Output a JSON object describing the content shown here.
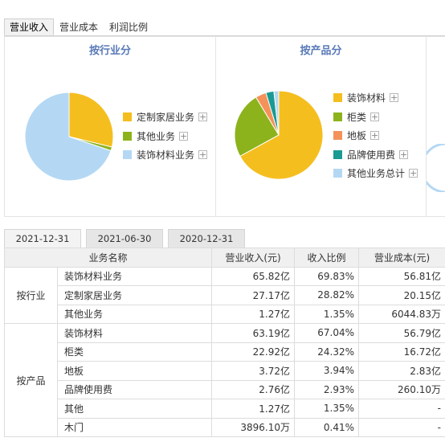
{
  "tabs": [
    "营业收入",
    "营业成本",
    "利润比例"
  ],
  "panels": [
    {
      "title": "按行业分",
      "legend": [
        {
          "label": "定制家居业务",
          "color": "#f5be1f"
        },
        {
          "label": "其他业务",
          "color": "#8cb31c"
        },
        {
          "label": "装饰材料业务",
          "color": "#b4d8f4"
        }
      ]
    },
    {
      "title": "按产品分",
      "legend": [
        {
          "label": "装饰材料",
          "color": "#f5be1f"
        },
        {
          "label": "柜类",
          "color": "#8cb31c"
        },
        {
          "label": "地板",
          "color": "#f4925a"
        },
        {
          "label": "品牌使用费",
          "color": "#1a9a92"
        },
        {
          "label": "其他业务总计",
          "color": "#b4d8f4"
        }
      ]
    }
  ],
  "chart_data": [
    {
      "type": "pie",
      "title": "按行业分",
      "categories": [
        "定制家居业务",
        "其他业务",
        "装饰材料业务"
      ],
      "values": [
        28.82,
        1.35,
        69.83
      ],
      "colors": [
        "#f5be1f",
        "#8cb31c",
        "#b4d8f4"
      ],
      "legend": "right"
    },
    {
      "type": "pie",
      "title": "按产品分",
      "categories": [
        "装饰材料",
        "柜类",
        "地板",
        "品牌使用费",
        "其他业务总计"
      ],
      "values": [
        67.04,
        24.32,
        3.94,
        2.93,
        1.77
      ],
      "colors": [
        "#f5be1f",
        "#8cb31c",
        "#f4925a",
        "#1a9a92",
        "#b4d8f4"
      ],
      "legend": "right"
    }
  ],
  "date_tabs": [
    "2021-12-31",
    "2021-06-30",
    "2020-12-31"
  ],
  "table": {
    "headers": [
      "业务名称",
      "营业收入(元)",
      "收入比例",
      "营业成本(元)"
    ],
    "groups": [
      {
        "label": "按行业",
        "rows": [
          {
            "name": "装饰材料业务",
            "revenue": "65.82亿",
            "ratio": "69.83%",
            "cost": "56.81亿"
          },
          {
            "name": "定制家居业务",
            "revenue": "27.17亿",
            "ratio": "28.82%",
            "cost": "20.15亿"
          },
          {
            "name": "其他业务",
            "revenue": "1.27亿",
            "ratio": "1.35%",
            "cost": "6044.83万"
          }
        ]
      },
      {
        "label": "按产品",
        "rows": [
          {
            "name": "装饰材料",
            "revenue": "63.19亿",
            "ratio": "67.04%",
            "cost": "56.79亿"
          },
          {
            "name": "柜类",
            "revenue": "22.92亿",
            "ratio": "24.32%",
            "cost": "16.72亿"
          },
          {
            "name": "地板",
            "revenue": "3.72亿",
            "ratio": "3.94%",
            "cost": "2.83亿"
          },
          {
            "name": "品牌使用费",
            "revenue": "2.76亿",
            "ratio": "2.93%",
            "cost": "260.10万"
          },
          {
            "name": "其他",
            "revenue": "1.27亿",
            "ratio": "1.35%",
            "cost": "-"
          },
          {
            "name": "木门",
            "revenue": "3896.10万",
            "ratio": "0.41%",
            "cost": "-"
          }
        ]
      }
    ]
  }
}
